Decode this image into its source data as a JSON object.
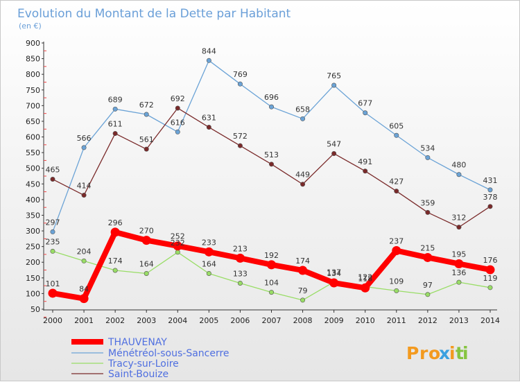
{
  "chart_data": {
    "type": "line",
    "title": "Evolution du Montant de la Dette par Habitant",
    "subtitle": "(en €)",
    "x": [
      "2000",
      "2001",
      "2002",
      "2003",
      "2004",
      "2005",
      "2006",
      "2007",
      "2008",
      "2009",
      "2010",
      "2011",
      "2012",
      "2013",
      "2014"
    ],
    "ylim": [
      50,
      900
    ],
    "yticks": [
      50,
      100,
      150,
      200,
      250,
      300,
      350,
      400,
      450,
      500,
      550,
      600,
      650,
      700,
      750,
      800,
      850,
      900
    ],
    "grid": false,
    "legend_position": "bottom-left",
    "series": [
      {
        "name": "THAUVENAY",
        "color": "#ff0000",
        "values": [
          101,
          84,
          296,
          270,
          252,
          233,
          213,
          192,
          174,
          134,
          118,
          237,
          215,
          195,
          176
        ]
      },
      {
        "name": "Ménétréol-sous-Sancerre",
        "color": "#6ba3d6",
        "values": [
          297,
          566,
          689,
          672,
          616,
          844,
          769,
          696,
          658,
          765,
          677,
          605,
          534,
          480,
          431
        ]
      },
      {
        "name": "Tracy-sur-Loire",
        "color": "#99dd66",
        "values": [
          235,
          204,
          174,
          164,
          232,
          164,
          133,
          104,
          79,
          137,
          122,
          109,
          97,
          136,
          119
        ]
      },
      {
        "name": "Saint-Bouize",
        "color": "#7a2a2a",
        "values": [
          465,
          414,
          611,
          561,
          692,
          631,
          572,
          513,
          449,
          547,
          491,
          427,
          359,
          312,
          378
        ]
      }
    ]
  },
  "logo": {
    "text": "Proxiti"
  }
}
